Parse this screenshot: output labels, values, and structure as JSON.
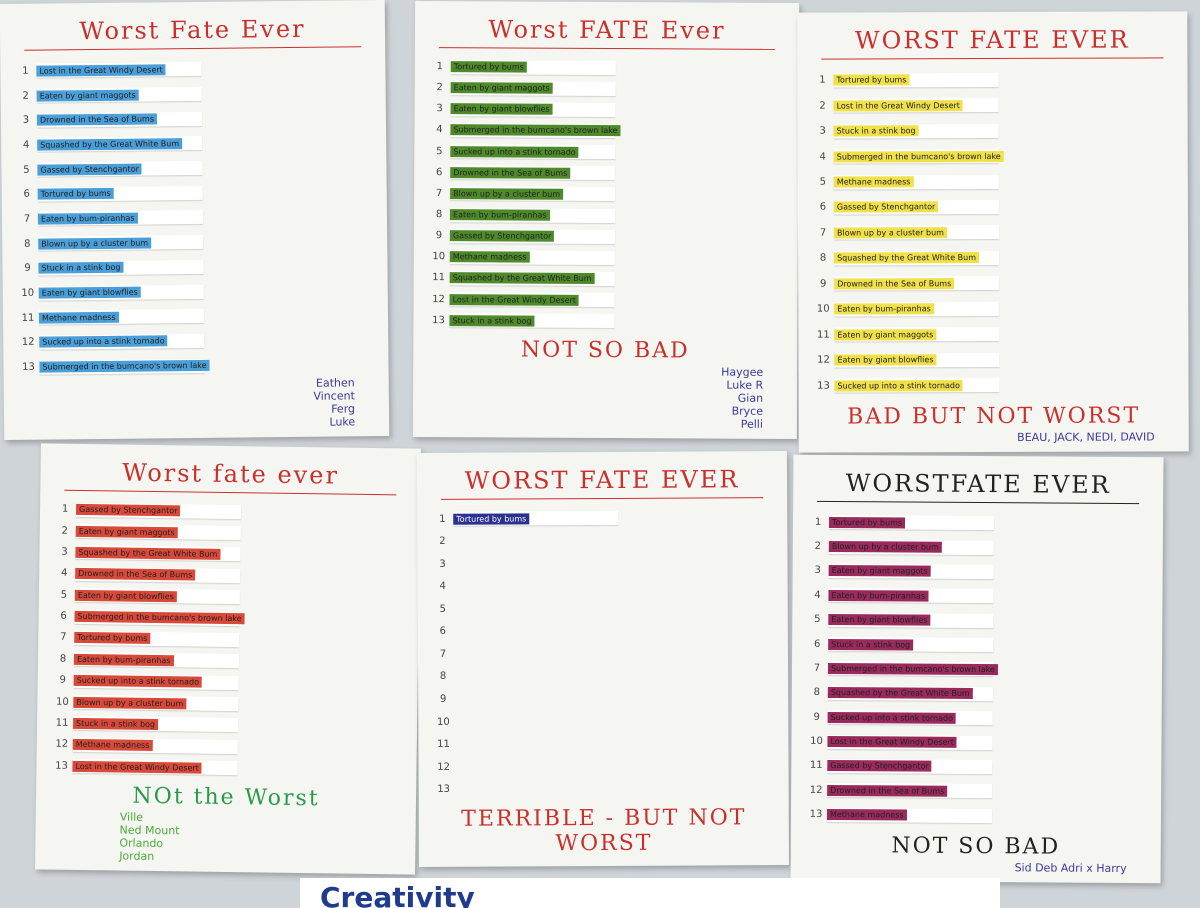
{
  "posters": [
    {
      "title": "Worst Fate Ever",
      "color": "#4a9fd8",
      "items": [
        {
          "number": "1",
          "text": "Lost in the Great Windy Desert"
        },
        {
          "number": "2",
          "text": "Eaten by giant maggots"
        },
        {
          "number": "3",
          "text": "Drowned in the Sea of Bums"
        },
        {
          "number": "4",
          "text": "Squashed by the Great White Bum"
        },
        {
          "number": "5",
          "text": "Gassed by Stenchgantor"
        },
        {
          "number": "6",
          "text": "Tortured by bums"
        },
        {
          "number": "7",
          "text": "Eaten by bum-piranhas"
        },
        {
          "number": "8",
          "text": "Blown up by a cluster bum"
        },
        {
          "number": "9",
          "text": "Stuck in a stink bog"
        },
        {
          "number": "10",
          "text": "Eaten by giant blowflies"
        },
        {
          "number": "11",
          "text": "Methane madness"
        },
        {
          "number": "12",
          "text": "Sucked up into a stink tornado"
        },
        {
          "number": "13",
          "text": "Submerged in the bumcano's brown lake"
        }
      ],
      "names": [
        "Eathen",
        "Vincent",
        "Ferg",
        "Luke"
      ]
    },
    {
      "title": "Worst FATE Ever",
      "color": "#4f8a2a",
      "items": [
        {
          "number": "1",
          "text": "Tortured by bums"
        },
        {
          "number": "2",
          "text": "Eaten by giant maggots"
        },
        {
          "number": "3",
          "text": "Eaten by giant blowflies"
        },
        {
          "number": "4",
          "text": "Submerged in the bumcano's brown lake"
        },
        {
          "number": "5",
          "text": "Sucked up into a stink tornado"
        },
        {
          "number": "6",
          "text": "Drowned in the Sea of Bums"
        },
        {
          "number": "7",
          "text": "Blown up by a cluster bum"
        },
        {
          "number": "8",
          "text": "Eaten by bum-piranhas"
        },
        {
          "number": "9",
          "text": "Gassed by Stenchgantor"
        },
        {
          "number": "10",
          "text": "Methane madness"
        },
        {
          "number": "11",
          "text": "Squashed by the Great White Bum"
        },
        {
          "number": "12",
          "text": "Lost in the Great Windy Desert"
        },
        {
          "number": "13",
          "text": "Stuck in a stink bog"
        }
      ],
      "footer": "NOT SO BAD",
      "names": [
        "Haygee",
        "Luke R",
        "Gian",
        "Bryce",
        "Pelli"
      ]
    },
    {
      "title": "WORST FATE EVER",
      "color": "#f0e04a",
      "items": [
        {
          "number": "1",
          "text": "Tortured by bums"
        },
        {
          "number": "2",
          "text": "Lost in the Great Windy Desert"
        },
        {
          "number": "3",
          "text": "Stuck in a stink bog"
        },
        {
          "number": "4",
          "text": "Submerged in the bumcano's brown lake"
        },
        {
          "number": "5",
          "text": "Methane madness"
        },
        {
          "number": "6",
          "text": "Gassed by Stenchgantor"
        },
        {
          "number": "7",
          "text": "Blown up by a cluster bum"
        },
        {
          "number": "8",
          "text": "Squashed by the Great White Bum"
        },
        {
          "number": "9",
          "text": "Drowned in the Sea of Bums"
        },
        {
          "number": "10",
          "text": "Eaten by bum-piranhas"
        },
        {
          "number": "11",
          "text": "Eaten by giant maggots"
        },
        {
          "number": "12",
          "text": "Eaten by giant blowflies"
        },
        {
          "number": "13",
          "text": "Sucked up into a stink tornado"
        }
      ],
      "footer": "BAD BUT NOT WORST",
      "names": [
        "BEAU, JACK, NEDI, DAVID"
      ]
    },
    {
      "title": "Worst fate ever",
      "color": "#d9493a",
      "items": [
        {
          "number": "1",
          "text": "Gassed by Stenchgantor"
        },
        {
          "number": "2",
          "text": "Eaten by giant maggots"
        },
        {
          "number": "3",
          "text": "Squashed by the Great White Bum"
        },
        {
          "number": "4",
          "text": "Drowned in the Sea of Bums"
        },
        {
          "number": "5",
          "text": "Eaten by giant blowflies"
        },
        {
          "number": "6",
          "text": "Submerged in the bumcano's brown lake"
        },
        {
          "number": "7",
          "text": "Tortured by bums"
        },
        {
          "number": "8",
          "text": "Eaten by bum-piranhas"
        },
        {
          "number": "9",
          "text": "Sucked up into a stink tornado"
        },
        {
          "number": "10",
          "text": "Blown up by a cluster bum"
        },
        {
          "number": "11",
          "text": "Stuck in a stink bog"
        },
        {
          "number": "12",
          "text": "Methane madness"
        },
        {
          "number": "13",
          "text": "Lost in the Great Windy Desert"
        }
      ],
      "footer": "NOt the Worst",
      "names": [
        "Ville",
        "Ned Mount",
        "Orlando",
        "Jordan"
      ]
    },
    {
      "title": "WORST FATE EVER",
      "color": "#2b3190",
      "items": [
        {
          "number": "1",
          "text": "Tortured by bums"
        },
        {
          "number": "2"
        },
        {
          "number": "3"
        },
        {
          "number": "4"
        },
        {
          "number": "5"
        },
        {
          "number": "6"
        },
        {
          "number": "7"
        },
        {
          "number": "8"
        },
        {
          "number": "9"
        },
        {
          "number": "10"
        },
        {
          "number": "11"
        },
        {
          "number": "12"
        },
        {
          "number": "13"
        }
      ],
      "footer": "TERRIBLE - BUT NOT WORST"
    },
    {
      "title": "WORSTFATE EVER",
      "color": "#9a2a5c",
      "items": [
        {
          "number": "1",
          "text": "Tortured by bums"
        },
        {
          "number": "2",
          "text": "Blown up by a cluster bum"
        },
        {
          "number": "3",
          "text": "Eaten by giant maggots"
        },
        {
          "number": "4",
          "text": "Eaten by bum-piranhas"
        },
        {
          "number": "5",
          "text": "Eaten by giant blowflies"
        },
        {
          "number": "6",
          "text": "Stuck in a stink bog"
        },
        {
          "number": "7",
          "text": "Submerged in the bumcano's brown lake"
        },
        {
          "number": "8",
          "text": "Squashed by the Great White Bum"
        },
        {
          "number": "9",
          "text": "Sucked up into a stink tornado"
        },
        {
          "number": "10",
          "text": "Lost in the Great Windy Desert"
        },
        {
          "number": "11",
          "text": "Gassed by Stenchgantor"
        },
        {
          "number": "12",
          "text": "Drowned in the Sea of Bums"
        },
        {
          "number": "13",
          "text": "Methane madness"
        }
      ],
      "footer": "NOT SO BAD",
      "names": [
        "Sid Deb Adri x Harry"
      ]
    }
  ],
  "banner": "Creativity"
}
